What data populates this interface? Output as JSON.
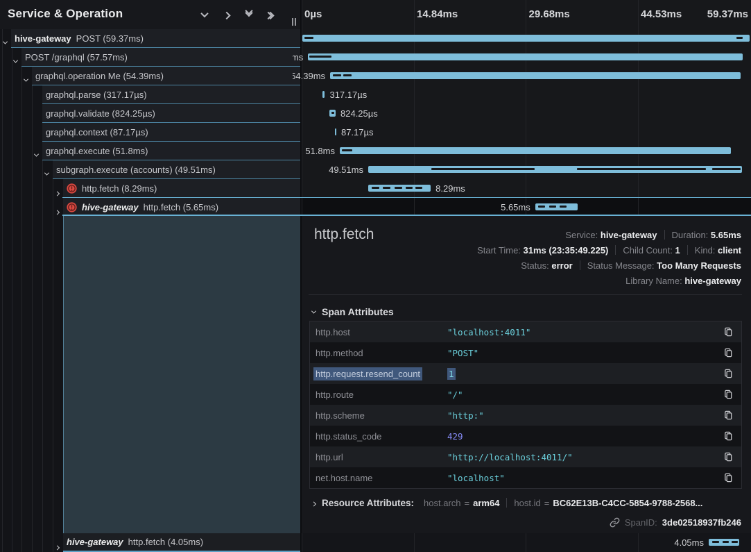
{
  "left_header": {
    "title": "Service & Operation",
    "icons": [
      {
        "name": "collapse-one-icon",
        "type": "down"
      },
      {
        "name": "expand-one-icon",
        "type": "right"
      },
      {
        "name": "collapse-all-icon",
        "type": "double-down"
      },
      {
        "name": "expand-all-icon",
        "type": "double-right"
      }
    ]
  },
  "timeline": {
    "axis_ticks": [
      "0µs",
      "14.84ms",
      "29.68ms",
      "44.53ms",
      "59.37ms"
    ],
    "total_ms": 59.37
  },
  "spans": [
    {
      "service": "hive-gateway",
      "service_italic": false,
      "label": "POST (59.37ms)",
      "level": 0,
      "chevron": "down",
      "error": false,
      "duration_label": "59.37ms",
      "start_ms": 0.05,
      "duration_ms": 59.37,
      "label_side": "before",
      "label_hidden": true,
      "marks": [
        [
          0.4,
          1.6
        ],
        [
          57.6,
          58.5
        ]
      ]
    },
    {
      "service": null,
      "service_italic": false,
      "label": "POST /graphql (57.57ms)",
      "level": 1,
      "chevron": "down",
      "error": false,
      "duration_label": "57.57ms",
      "start_ms": 0.85,
      "duration_ms": 57.57,
      "label_side": "before",
      "label_hidden": false,
      "marks": [
        [
          1.0,
          3.95
        ]
      ]
    },
    {
      "service": null,
      "service_italic": false,
      "label": "graphql.operation Me (54.39ms)",
      "level": 2,
      "chevron": "down",
      "error": false,
      "duration_label": "54.39ms",
      "start_ms": 3.77,
      "duration_ms": 54.39,
      "label_side": "before",
      "label_hidden": false,
      "marks": [
        [
          4.1,
          5.2
        ],
        [
          5.5,
          6.6
        ]
      ]
    },
    {
      "service": null,
      "service_italic": false,
      "label": "graphql.parse (317.17µs)",
      "level": 3,
      "chevron": null,
      "error": false,
      "duration_label": "317.17µs",
      "start_ms": 2.76,
      "duration_ms": 0.317,
      "label_side": "after",
      "label_hidden": false,
      "marks": []
    },
    {
      "service": null,
      "service_italic": false,
      "label": "graphql.validate (824.25µs)",
      "level": 3,
      "chevron": null,
      "error": false,
      "duration_label": "824.25µs",
      "start_ms": 3.68,
      "duration_ms": 0.824,
      "label_side": "after",
      "label_hidden": false,
      "marks": [
        [
          3.95,
          4.35
        ]
      ]
    },
    {
      "service": null,
      "service_italic": false,
      "label": "graphql.context (87.17µs)",
      "level": 3,
      "chevron": null,
      "error": false,
      "duration_label": "87.17µs",
      "start_ms": 4.41,
      "duration_ms": 0.087,
      "label_side": "after",
      "label_hidden": false,
      "marks": []
    },
    {
      "service": null,
      "service_italic": false,
      "label": "graphql.execute (51.8ms)",
      "level": 3,
      "chevron": "down",
      "error": false,
      "duration_label": "51.8ms",
      "start_ms": 5.05,
      "duration_ms": 51.8,
      "label_side": "before",
      "label_hidden": false,
      "marks": [
        [
          5.3,
          6.7
        ]
      ]
    },
    {
      "service": null,
      "service_italic": false,
      "label": "subgraph.execute (accounts) (49.51ms)",
      "level": 4,
      "chevron": "down",
      "error": false,
      "duration_label": "49.51ms",
      "start_ms": 8.82,
      "duration_ms": 49.51,
      "label_side": "before",
      "label_hidden": false,
      "marks": [
        [
          17.2,
          30.9
        ],
        [
          36.5,
          53.6
        ],
        [
          54.4,
          58.2
        ]
      ]
    },
    {
      "service": null,
      "service_italic": false,
      "label": "http.fetch (8.29ms)",
      "level": 5,
      "chevron": "right",
      "error": true,
      "duration_label": "8.29ms",
      "start_ms": 8.82,
      "duration_ms": 8.29,
      "label_side": "after",
      "label_hidden": false,
      "marks": [
        [
          9.3,
          10.3
        ],
        [
          10.8,
          11.8
        ],
        [
          12.3,
          13.3
        ],
        [
          13.8,
          14.7
        ],
        [
          15.1,
          16.0
        ]
      ]
    },
    {
      "service": "hive-gateway",
      "service_italic": true,
      "label": "http.fetch (5.65ms)",
      "level": 5,
      "chevron": "right",
      "error": true,
      "duration_label": "5.65ms",
      "start_ms": 30.95,
      "duration_ms": 5.65,
      "label_side": "before",
      "label_hidden": false,
      "selected": true,
      "marks": [
        [
          31.3,
          32.3
        ],
        [
          32.8,
          33.7
        ],
        [
          34.2,
          35.1
        ]
      ]
    }
  ],
  "bottom_span": {
    "service": "hive-gateway",
    "service_italic": true,
    "label": "http.fetch (4.05ms)",
    "level": 5,
    "chevron": "right",
    "error": false,
    "duration_label": "4.05ms",
    "start_ms": 53.95,
    "duration_ms": 4.05,
    "label_side": "before",
    "label_hidden": false,
    "marks": [
      [
        54.4,
        55.3
      ],
      [
        55.8,
        56.6
      ],
      [
        57.0,
        57.8
      ]
    ]
  },
  "detail": {
    "title": "http.fetch",
    "meta_lines": [
      [
        {
          "label": "Service:",
          "value": "hive-gateway"
        },
        {
          "label": "Duration:",
          "value": "5.65ms"
        }
      ],
      [
        {
          "label": "Start Time:",
          "value": "31ms (23:35:49.225)"
        },
        {
          "label": "Child Count:",
          "value": "1"
        },
        {
          "label": "Kind:",
          "value": "client"
        }
      ],
      [
        {
          "label": "Status:",
          "value": "error"
        },
        {
          "label": "Status Message:",
          "value": "Too Many Requests"
        }
      ],
      [
        {
          "label": "Library Name:",
          "value": "hive-gateway"
        }
      ]
    ],
    "span_attributes": {
      "title": "Span Attributes",
      "rows": [
        {
          "key": "http.host",
          "value": "\"localhost:4011\"",
          "value_type": "string",
          "highlighted": false
        },
        {
          "key": "http.method",
          "value": "\"POST\"",
          "value_type": "string",
          "highlighted": false
        },
        {
          "key": "http.request.resend_count",
          "value": "1",
          "value_type": "number",
          "highlighted": true
        },
        {
          "key": "http.route",
          "value": "\"/\"",
          "value_type": "string",
          "highlighted": false
        },
        {
          "key": "http.scheme",
          "value": "\"http:\"",
          "value_type": "string",
          "highlighted": false
        },
        {
          "key": "http.status_code",
          "value": "429",
          "value_type": "number",
          "highlighted": false
        },
        {
          "key": "http.url",
          "value": "\"http://localhost:4011/\"",
          "value_type": "string",
          "highlighted": false
        },
        {
          "key": "net.host.name",
          "value": "\"localhost\"",
          "value_type": "string",
          "highlighted": false
        }
      ]
    },
    "resource_attributes": {
      "title": "Resource Attributes:",
      "items": [
        {
          "key": "host.arch",
          "value": "arm64"
        },
        {
          "key": "host.id",
          "value": "BC62E13B-C4CC-5854-9788-2568..."
        }
      ]
    },
    "span_id": {
      "label": "SpanID:",
      "value": "3de02518937fb246"
    }
  },
  "colors": {
    "bar": "#7ebdda",
    "accent_border": "#68b1d4",
    "error_icon": "#dc4a42",
    "string_value": "#6bd0dc",
    "number_value": "#878cf8",
    "selection_highlight": "#40587c"
  }
}
